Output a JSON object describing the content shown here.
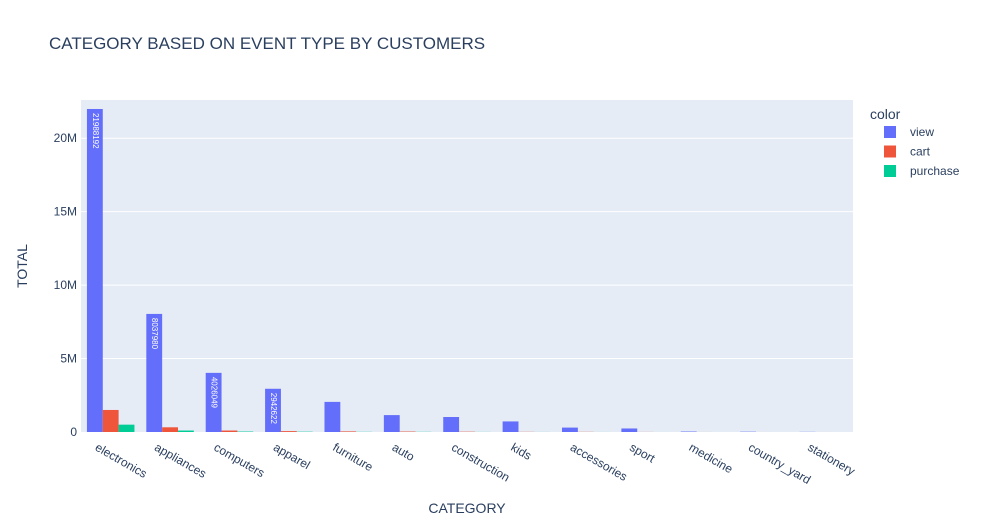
{
  "chart_data": {
    "type": "bar",
    "title": "CATEGORY BASED ON EVENT TYPE BY CUSTOMERS",
    "xlabel": "CATEGORY",
    "ylabel": "TOTAL",
    "legend_title": "color",
    "legend_position": "top-right",
    "grid": true,
    "ylim": [
      0,
      22.6
    ],
    "y_unit_suffix": "M",
    "y_ticks": [
      "0",
      "5M",
      "10M",
      "15M",
      "20M"
    ],
    "y_tick_values": [
      0,
      5,
      10,
      15,
      20
    ],
    "categories": [
      "electronics",
      "appliances",
      "computers",
      "apparel",
      "furniture",
      "auto",
      "construction",
      "kids",
      "accessories",
      "sport",
      "medicine",
      "country_yard",
      "stationery"
    ],
    "series": [
      {
        "name": "view",
        "color": "#636efa",
        "values": [
          21.988192,
          8.03798,
          4.026049,
          2.942622,
          2.05,
          1.15,
          1.02,
          0.72,
          0.3,
          0.24,
          0.03,
          0.02,
          0.01
        ],
        "labels": [
          "21988192",
          "8037980",
          "4026049",
          "2942622",
          "",
          "",
          "",
          "",
          "",
          "",
          "",
          "",
          ""
        ]
      },
      {
        "name": "cart",
        "color": "#ef553b",
        "values": [
          1.5,
          0.32,
          0.1,
          0.06,
          0.04,
          0.03,
          0.02,
          0.01,
          0.01,
          0.005,
          0.002,
          0.001,
          0.001
        ],
        "labels": [
          "",
          "",
          "",
          "",
          "",
          "",
          "",
          "",
          "",
          "",
          "",
          "",
          ""
        ]
      },
      {
        "name": "purchase",
        "color": "#00cc96",
        "values": [
          0.5,
          0.1,
          0.03,
          0.02,
          0.01,
          0.01,
          0.005,
          0.003,
          0.002,
          0.001,
          0.0005,
          0.0003,
          0.0002
        ],
        "labels": [
          "",
          "",
          "",
          "",
          "",
          "",
          "",
          "",
          "",
          "",
          "",
          "",
          ""
        ]
      }
    ]
  }
}
